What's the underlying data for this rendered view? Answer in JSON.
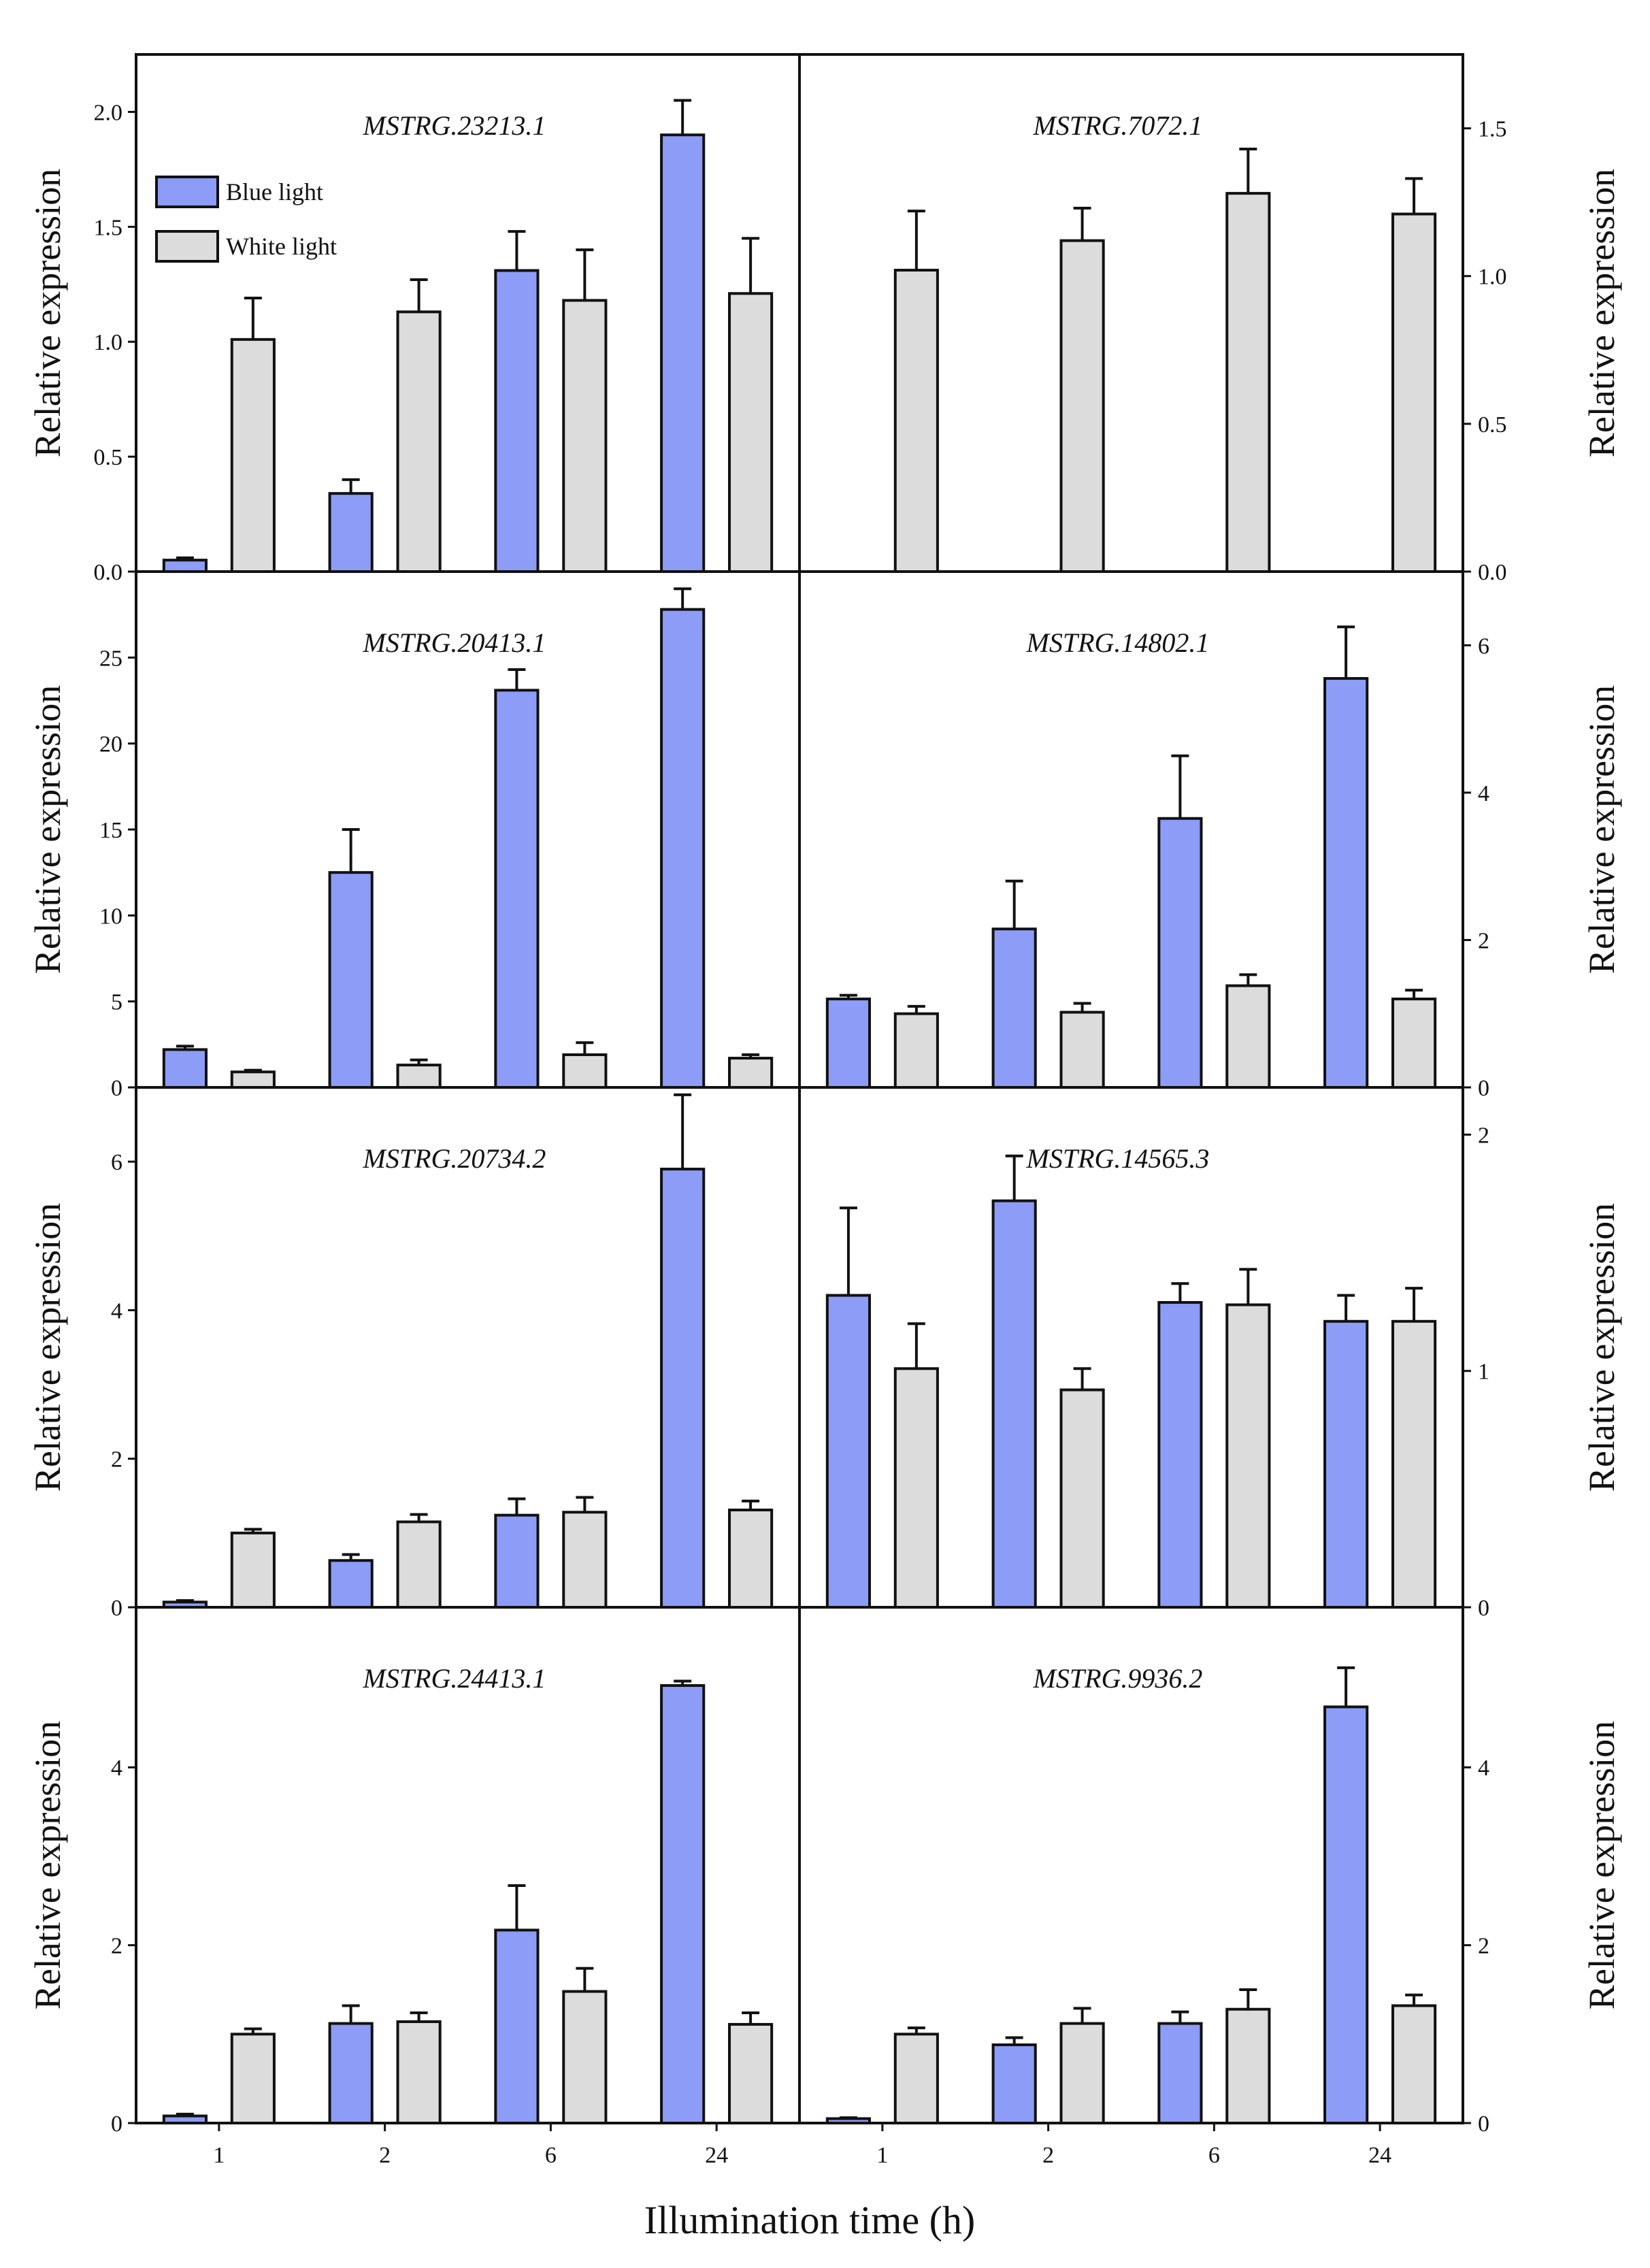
{
  "figure": {
    "x_axis_label": "Illumination time (h)",
    "y_axis_label": "Relative expression",
    "colors": {
      "blue": "#8c9cf7",
      "white": "#dcdcdc",
      "edge": "#111111"
    }
  },
  "chart_data": [
    {
      "type": "bar",
      "title": "MSTRG.23213.1",
      "categories": [
        "1",
        "2",
        "6",
        "24"
      ],
      "xlabel": "Illumination time (h)",
      "ylabel": "Relative expression",
      "ylim": [
        0,
        2.25
      ],
      "yticks": [
        "0.0",
        "0.5",
        "1.0",
        "1.5",
        "2.0"
      ],
      "legend": {
        "placement": "top-left",
        "entries": [
          "Blue light",
          "White light"
        ]
      },
      "series": [
        {
          "name": "Blue light",
          "values": [
            0.05,
            0.34,
            1.31,
            1.9
          ],
          "errors": [
            0.01,
            0.06,
            0.17,
            0.15
          ]
        },
        {
          "name": "White light",
          "values": [
            1.01,
            1.13,
            1.18,
            1.21
          ],
          "errors": [
            0.18,
            0.14,
            0.22,
            0.24
          ]
        }
      ]
    },
    {
      "type": "bar",
      "title": "MSTRG.7072.1",
      "categories": [
        "1",
        "2",
        "6",
        "24"
      ],
      "xlabel": "Illumination time (h)",
      "ylabel": "Relative expression",
      "ylim": [
        0,
        1.75
      ],
      "yticks": [
        "0.0",
        "0.5",
        "1.0",
        "1.5"
      ],
      "series": [
        {
          "name": "White light",
          "values": [
            1.02,
            1.12,
            1.28,
            1.21
          ],
          "errors": [
            0.2,
            0.11,
            0.15,
            0.12
          ]
        }
      ]
    },
    {
      "type": "bar",
      "title": "MSTRG.20413.1",
      "categories": [
        "1",
        "2",
        "6",
        "24"
      ],
      "xlabel": "Illumination time (h)",
      "ylabel": "Relative expression",
      "ylim": [
        0,
        30
      ],
      "yticks": [
        "0",
        "5",
        "10",
        "15",
        "20",
        "25"
      ],
      "series": [
        {
          "name": "Blue light",
          "values": [
            2.2,
            12.5,
            23.1,
            27.8
          ],
          "errors": [
            0.2,
            2.5,
            1.2,
            1.2
          ]
        },
        {
          "name": "White light",
          "values": [
            0.9,
            1.3,
            1.9,
            1.7
          ],
          "errors": [
            0.1,
            0.3,
            0.7,
            0.2
          ]
        }
      ]
    },
    {
      "type": "bar",
      "title": "MSTRG.14802.1",
      "categories": [
        "1",
        "2",
        "6",
        "24"
      ],
      "xlabel": "Illumination time (h)",
      "ylabel": "Relative expression",
      "ylim": [
        0,
        7
      ],
      "yticks": [
        "0",
        "2",
        "4",
        "6"
      ],
      "series": [
        {
          "name": "Blue light",
          "values": [
            1.2,
            2.15,
            3.65,
            5.55
          ],
          "errors": [
            0.05,
            0.65,
            0.85,
            0.7
          ]
        },
        {
          "name": "White light",
          "values": [
            1.0,
            1.02,
            1.38,
            1.2
          ],
          "errors": [
            0.1,
            0.12,
            0.15,
            0.12
          ]
        }
      ]
    },
    {
      "type": "bar",
      "title": "MSTRG.20734.2",
      "categories": [
        "1",
        "2",
        "6",
        "24"
      ],
      "xlabel": "Illumination time (h)",
      "ylabel": "Relative expression",
      "ylim": [
        0,
        7
      ],
      "yticks": [
        "0",
        "2",
        "4",
        "6"
      ],
      "series": [
        {
          "name": "Blue light",
          "values": [
            0.07,
            0.63,
            1.24,
            5.9
          ],
          "errors": [
            0.02,
            0.08,
            0.22,
            1.0
          ]
        },
        {
          "name": "White light",
          "values": [
            1.0,
            1.15,
            1.28,
            1.31
          ],
          "errors": [
            0.05,
            0.1,
            0.2,
            0.12
          ]
        }
      ]
    },
    {
      "type": "bar",
      "title": "MSTRG.14565.3",
      "categories": [
        "1",
        "2",
        "6",
        "24"
      ],
      "xlabel": "Illumination time (h)",
      "ylabel": "Relative expression",
      "ylim": [
        0,
        2.2
      ],
      "yticks": [
        "0",
        "1",
        "2"
      ],
      "series": [
        {
          "name": "Blue light",
          "values": [
            1.32,
            1.72,
            1.29,
            1.21
          ],
          "errors": [
            0.37,
            0.19,
            0.08,
            0.11
          ]
        },
        {
          "name": "White light",
          "values": [
            1.01,
            0.92,
            1.28,
            1.21
          ],
          "errors": [
            0.19,
            0.09,
            0.15,
            0.14
          ]
        }
      ]
    },
    {
      "type": "bar",
      "title": "MSTRG.24413.1",
      "categories": [
        "1",
        "2",
        "6",
        "24"
      ],
      "xlabel": "Illumination time (h)",
      "ylabel": "Relative expression",
      "ylim": [
        0,
        5.8
      ],
      "yticks": [
        "0",
        "2",
        "4"
      ],
      "series": [
        {
          "name": "Blue light",
          "values": [
            0.08,
            1.12,
            2.17,
            4.92
          ],
          "errors": [
            0.02,
            0.2,
            0.5,
            0.05
          ]
        },
        {
          "name": "White light",
          "values": [
            1.0,
            1.14,
            1.48,
            1.11
          ],
          "errors": [
            0.06,
            0.1,
            0.26,
            0.13
          ]
        }
      ]
    },
    {
      "type": "bar",
      "title": "MSTRG.9936.2",
      "categories": [
        "1",
        "2",
        "6",
        "24"
      ],
      "xlabel": "Illumination time (h)",
      "ylabel": "Relative expression",
      "ylim": [
        0,
        5.8
      ],
      "yticks": [
        "0",
        "2",
        "4"
      ],
      "series": [
        {
          "name": "Blue light",
          "values": [
            0.05,
            0.88,
            1.12,
            4.68
          ],
          "errors": [
            0.01,
            0.08,
            0.13,
            0.44
          ]
        },
        {
          "name": "White light",
          "values": [
            1.0,
            1.12,
            1.28,
            1.32
          ],
          "errors": [
            0.07,
            0.17,
            0.22,
            0.12
          ]
        }
      ]
    }
  ]
}
